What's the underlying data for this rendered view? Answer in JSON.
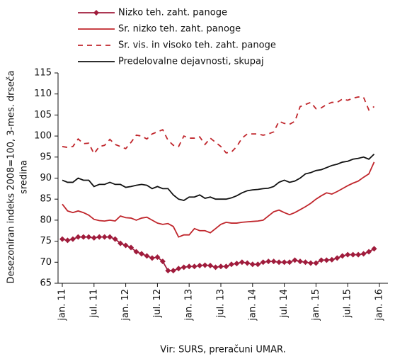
{
  "chart_data": {
    "type": "line",
    "y_label": [
      "Desezoniran indeks 2008=100, 3-mes. drseča",
      "sredina"
    ],
    "source": "Vir: SURS, preračuni UMAR.",
    "categories": [
      "jan. 11",
      null,
      null,
      null,
      null,
      null,
      "jul. 11",
      null,
      null,
      null,
      null,
      null,
      "jan. 12",
      null,
      null,
      null,
      null,
      null,
      "jul. 12",
      null,
      null,
      null,
      null,
      null,
      "jan. 13",
      null,
      null,
      null,
      null,
      null,
      "jul. 13",
      null,
      null,
      null,
      null,
      null,
      "jan. 14",
      null,
      null,
      null,
      null,
      null,
      "jul. 14",
      null,
      null,
      null,
      null,
      null,
      "jan. 15",
      null,
      null,
      null,
      null,
      null,
      "jul. 15",
      null,
      null,
      null,
      null,
      null,
      "jan. 16"
    ],
    "ylim": [
      65,
      115
    ],
    "yticks": [
      65,
      70,
      75,
      80,
      85,
      90,
      95,
      100,
      105,
      110,
      115
    ],
    "grid": false,
    "series": [
      {
        "name": "Nizko teh. zaht. panoge",
        "color": "#a01c3c",
        "style": "diamond",
        "values": [
          75.5,
          75.2,
          75.5,
          76,
          76,
          76,
          75.8,
          76,
          76,
          76,
          75.5,
          74.5,
          74,
          73.5,
          72.5,
          72,
          71.5,
          71,
          71.2,
          70.2,
          68,
          68,
          68.5,
          68.8,
          69,
          69,
          69.2,
          69.3,
          69.2,
          68.8,
          69,
          69,
          69.5,
          69.7,
          70,
          69.8,
          69.5,
          69.5,
          70,
          70.2,
          70.2,
          70,
          70,
          70,
          70.5,
          70.2,
          70,
          69.8,
          69.8,
          70.5,
          70.5,
          70.6,
          71,
          71.5,
          71.8,
          71.8,
          71.8,
          72,
          72.5,
          73.2,
          null
        ]
      },
      {
        "name": "Sr. nizko teh. zaht. panoge",
        "color": "#c0262c",
        "style": "solid",
        "values": [
          83.8,
          82.2,
          81.8,
          82.2,
          81.8,
          81.2,
          80.2,
          79.9,
          79.8,
          80,
          79.8,
          81,
          80.6,
          80.5,
          80,
          80.5,
          80.7,
          80,
          79.3,
          79,
          79.2,
          78.5,
          76,
          76.5,
          76.5,
          78,
          77.5,
          77.5,
          77,
          78,
          79,
          79.5,
          79.3,
          79.3,
          79.5,
          79.6,
          79.7,
          79.8,
          80,
          81,
          82,
          82.4,
          81.8,
          81.3,
          81.8,
          82.5,
          83.2,
          84,
          85,
          85.8,
          86.5,
          86.2,
          86.8,
          87.5,
          88.2,
          88.8,
          89.3,
          90.2,
          91,
          93.8,
          null
        ]
      },
      {
        "name": "Sr. vis. in visoko teh. zaht. panoge",
        "color": "#c0262c",
        "style": "dashed",
        "values": [
          97.5,
          97.3,
          97.5,
          99.3,
          98.2,
          98.3,
          95.8,
          97.5,
          97.8,
          99.2,
          98,
          97.5,
          97,
          98.5,
          100.2,
          100,
          99.3,
          100.5,
          101,
          101.5,
          99,
          97.8,
          97.5,
          100,
          99.5,
          99.5,
          99.8,
          98,
          99.5,
          98.5,
          97.5,
          96,
          96.2,
          97.5,
          99.5,
          100.5,
          100.5,
          100.5,
          100.2,
          100.5,
          101,
          103.5,
          103,
          102.8,
          103.5,
          107,
          107.5,
          108,
          106.5,
          106.7,
          107.5,
          108,
          108,
          108.8,
          108.5,
          109,
          109.3,
          109.2,
          106.2,
          107,
          null
        ]
      },
      {
        "name": "Predelovalne dejavnosti, skupaj",
        "color": "#111111",
        "style": "solid",
        "values": [
          89.5,
          89,
          89,
          90,
          89.5,
          89.5,
          88,
          88.5,
          88.5,
          89,
          88.5,
          88.5,
          87.8,
          88,
          88.3,
          88.5,
          88.3,
          87.5,
          88,
          87.5,
          87.5,
          86,
          85,
          84.7,
          85.5,
          85.5,
          86,
          85.2,
          85.5,
          85,
          85,
          85,
          85.3,
          85.8,
          86.5,
          87,
          87.2,
          87.3,
          87.5,
          87.6,
          88,
          89,
          89.5,
          89,
          89.3,
          90,
          91,
          91.3,
          91.8,
          92,
          92.5,
          93,
          93.3,
          93.8,
          94,
          94.5,
          94.7,
          95,
          94.5,
          95.7,
          null
        ]
      }
    ]
  }
}
